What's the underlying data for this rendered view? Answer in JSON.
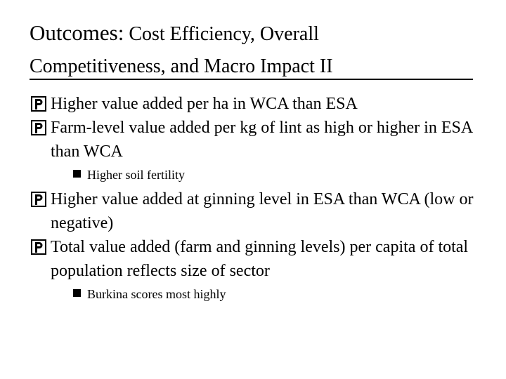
{
  "slide": {
    "title_line1_first": "Outcomes:",
    "title_line1_rest": " Cost Efficiency, Overall",
    "title_line2": "Competitiveness, and Macro Impact II",
    "bullets": [
      {
        "text": "Higher value added per ha in WCA than ESA"
      },
      {
        "text": "Farm-level value added per kg of lint as high or higher in ESA than WCA",
        "sub": [
          "Higher soil fertility"
        ]
      },
      {
        "text": "Higher value added at ginning level in ESA than WCA (low or negative)"
      },
      {
        "text": "Total value added (farm and ginning levels) per capita of total population reflects size of sector",
        "sub": [
          "Burkina scores most highly"
        ]
      }
    ],
    "bullet_icon": "box-p-bullet-icon",
    "sub_bullet_icon": "square-bullet-icon"
  }
}
